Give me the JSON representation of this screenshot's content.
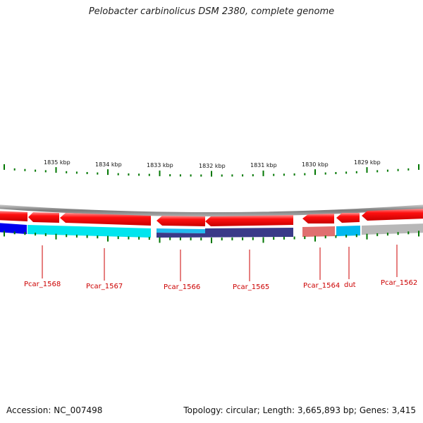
{
  "title": "Pelobacter carbinolicus DSM 2380, complete genome",
  "footer": {
    "accession": "Accession: NC_007498",
    "summary": "Topology: circular; Length: 3,665,893 bp; Genes: 3,415"
  },
  "colors": {
    "strand_red": "#ee0000",
    "strand_red_light": "#ff6666",
    "backbone": "#888888",
    "tick": "#007700",
    "label": "#cc0000"
  },
  "scale": {
    "unit": "kbp",
    "labels": [
      "1835 kbp",
      "1834 kbp",
      "1833 kbp",
      "1832 kbp",
      "1831 kbp",
      "1830 kbp",
      "1829 kbp"
    ]
  },
  "genes": [
    {
      "name": "Pcar_1568",
      "cog_color": "#0000ee"
    },
    {
      "name": "Pcar_1567",
      "cog_color": "#00e5ee"
    },
    {
      "name": "Pcar_1566",
      "cog_color": "#22bbee"
    },
    {
      "name": "Pcar_1565",
      "cog_color": "#3a3a88"
    },
    {
      "name": "Pcar_1564",
      "cog_color": "#e07070"
    },
    {
      "name": "dut",
      "cog_color": "#00b8ee"
    },
    {
      "name": "Pcar_1562",
      "cog_color": "#b8b8b8"
    }
  ]
}
